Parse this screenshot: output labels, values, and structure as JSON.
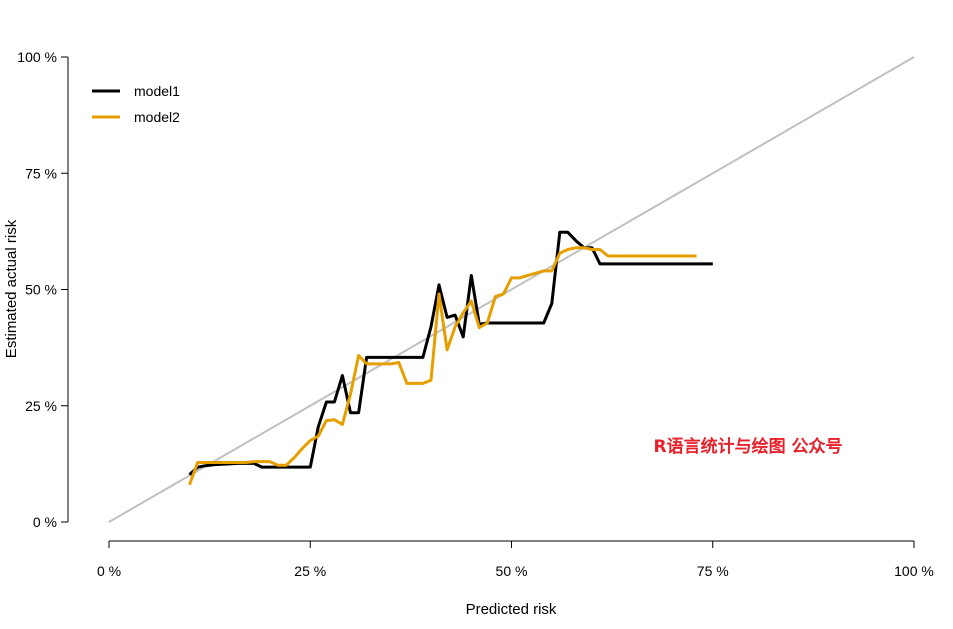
{
  "chart_data": {
    "type": "line",
    "xlabel": "Predicted risk",
    "ylabel": "Estimated actual risk",
    "xlim": [
      0,
      100
    ],
    "ylim": [
      0,
      100
    ],
    "x_ticks": [
      "0 %",
      "25 %",
      "50 %",
      "75 %",
      "100 %"
    ],
    "y_ticks": [
      "0 %",
      "25 %",
      "50 %",
      "75 %",
      "100 %"
    ],
    "tick_values": [
      0,
      25,
      50,
      75,
      100
    ],
    "legend_position": "top-left",
    "reference_line": {
      "x": [
        0,
        100
      ],
      "y": [
        0,
        100
      ],
      "color": "#c0c0c0"
    },
    "series": [
      {
        "name": "model1",
        "color": "#000000",
        "x": [
          10,
          11,
          12,
          13,
          14,
          15,
          16,
          17,
          18,
          19,
          20,
          21,
          22,
          23,
          24,
          25,
          26,
          27,
          28,
          29,
          30,
          31,
          32,
          33,
          34,
          35,
          36,
          37,
          38,
          39,
          40,
          41,
          42,
          43,
          44,
          45,
          46,
          47,
          48,
          49,
          50,
          51,
          52,
          53,
          54,
          55,
          56,
          57,
          58,
          59,
          60,
          61,
          62,
          63,
          64,
          65,
          66,
          67,
          68,
          69,
          70,
          71,
          72,
          73,
          74,
          75
        ],
        "y": [
          10.2,
          11.8,
          12.1,
          12.3,
          12.4,
          12.5,
          12.6,
          12.6,
          12.6,
          11.8,
          11.8,
          11.8,
          11.8,
          11.8,
          11.8,
          11.8,
          20.5,
          25.8,
          25.8,
          31.5,
          23.5,
          23.5,
          35.4,
          35.4,
          35.4,
          35.4,
          35.4,
          35.4,
          35.4,
          35.4,
          42.0,
          51.0,
          44.0,
          44.5,
          39.8,
          53.0,
          42.5,
          42.8,
          42.8,
          42.8,
          42.8,
          42.8,
          42.8,
          42.8,
          42.8,
          47.0,
          62.3,
          62.3,
          60.5,
          59.0,
          59.0,
          55.5,
          55.5,
          55.5,
          55.5,
          55.5,
          55.5,
          55.5,
          55.5,
          55.5,
          55.5,
          55.5,
          55.5,
          55.5,
          55.5,
          55.5
        ]
      },
      {
        "name": "model2",
        "color": "#e69f00",
        "x": [
          10,
          11,
          12,
          13,
          14,
          15,
          16,
          17,
          18,
          19,
          20,
          21,
          22,
          23,
          24,
          25,
          26,
          27,
          28,
          29,
          30,
          31,
          32,
          33,
          34,
          35,
          36,
          37,
          38,
          39,
          40,
          41,
          42,
          43,
          44,
          45,
          46,
          47,
          48,
          49,
          50,
          51,
          52,
          53,
          54,
          55,
          56,
          57,
          58,
          59,
          60,
          61,
          62,
          63,
          64,
          65,
          66,
          67,
          68,
          69,
          70,
          71,
          72,
          73
        ],
        "y": [
          8.0,
          12.8,
          12.8,
          12.8,
          12.8,
          12.8,
          12.8,
          12.8,
          13.0,
          13.0,
          13.0,
          12.2,
          12.2,
          13.8,
          15.8,
          17.5,
          18.5,
          21.8,
          22.0,
          21.0,
          27.5,
          35.8,
          34.0,
          34.0,
          34.0,
          34.0,
          34.3,
          29.8,
          29.8,
          29.8,
          30.5,
          49.0,
          37.0,
          42.0,
          45.0,
          47.5,
          41.8,
          42.8,
          48.5,
          49.0,
          52.5,
          52.5,
          53.0,
          53.5,
          54.0,
          54.0,
          57.8,
          58.6,
          59.0,
          59.0,
          58.6,
          58.6,
          57.2,
          57.2,
          57.2,
          57.2,
          57.2,
          57.2,
          57.2,
          57.2,
          57.2,
          57.2,
          57.2,
          57.2
        ]
      }
    ]
  },
  "watermark": {
    "text": "R语言统计与绘图 公众号",
    "color": "#e8202a"
  }
}
